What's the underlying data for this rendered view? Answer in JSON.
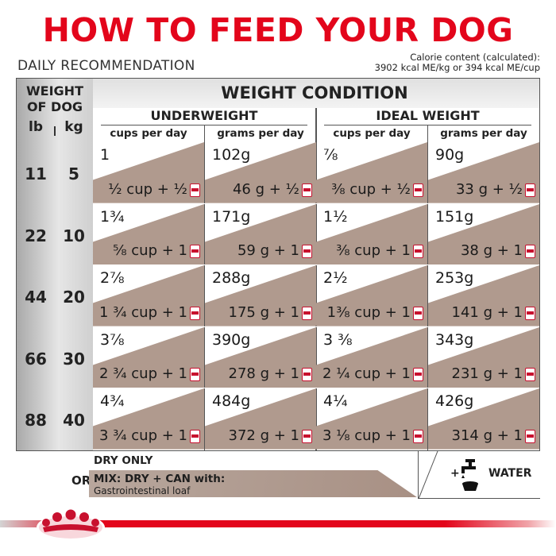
{
  "title": "HOW TO FEED YOUR DOG",
  "daily_recommendation": "DAILY RECOMMENDATION",
  "calorie": {
    "line1": "Calorie content (calculated):",
    "line2": "3902 kcal ME/kg or 394 kcal ME/cup"
  },
  "table": {
    "weight_of_dog": "WEIGHT OF DOG",
    "weight_line1": "WEIGHT",
    "weight_line2": "OF DOG",
    "unit_lb": "lb",
    "unit_kg": "kg",
    "weight_condition": "WEIGHT CONDITION",
    "underweight": "UNDERWEIGHT",
    "ideal_weight": "IDEAL WEIGHT",
    "cups_per_day": "cups per day",
    "grams_per_day": "grams per day",
    "rows": [
      {
        "lb": "11",
        "kg": "5",
        "under_cups": "1",
        "under_cups_mix": "½ cup + ½",
        "under_grams": "102g",
        "under_grams_mix": "46 g + ½",
        "ideal_cups": "⅞",
        "ideal_cups_mix": "⅜ cup + ½",
        "ideal_grams": "90g",
        "ideal_grams_mix": "33 g + ½"
      },
      {
        "lb": "22",
        "kg": "10",
        "under_cups": "1¾",
        "under_cups_mix": "⅝ cup + 1",
        "under_grams": "171g",
        "under_grams_mix": "59 g + 1",
        "ideal_cups": "1½",
        "ideal_cups_mix": "⅜ cup + 1",
        "ideal_grams": "151g",
        "ideal_grams_mix": "38 g + 1"
      },
      {
        "lb": "44",
        "kg": "20",
        "under_cups": "2⅞",
        "under_cups_mix": "1 ¾ cup + 1",
        "under_grams": "288g",
        "under_grams_mix": "175 g + 1",
        "ideal_cups": "2½",
        "ideal_cups_mix": "1⅜ cup + 1",
        "ideal_grams": "253g",
        "ideal_grams_mix": "141 g + 1"
      },
      {
        "lb": "66",
        "kg": "30",
        "under_cups": "3⅞",
        "under_cups_mix": "2 ¾ cup + 1",
        "under_grams": "390g",
        "under_grams_mix": "278 g + 1",
        "ideal_cups": "3 ⅜",
        "ideal_cups_mix": "2 ¼ cup + 1",
        "ideal_grams": "343g",
        "ideal_grams_mix": "231 g + 1"
      },
      {
        "lb": "88",
        "kg": "40",
        "under_cups": "4¾",
        "under_cups_mix": "3 ¾ cup + 1",
        "under_grams": "484g",
        "under_grams_mix": "372 g + 1",
        "ideal_cups": "4¼",
        "ideal_cups_mix": "3 ⅛ cup + 1",
        "ideal_grams": "426g",
        "ideal_grams_mix": "314 g + 1"
      }
    ]
  },
  "legend": {
    "dry_only": "DRY ONLY",
    "or": "OR",
    "mix_line1": "MIX: DRY + CAN with:",
    "mix_line2": "Gastrointestinal loaf",
    "plus": "+",
    "water": "WATER"
  },
  "icons": {
    "can": "can-icon",
    "water": "water-tap-bowl-icon",
    "logo": "royal-canin-crown-logo"
  },
  "colors": {
    "brand_red": "#e3051b",
    "mix_tan": "#b09a8e",
    "header_gray": "#e6e6e6"
  }
}
